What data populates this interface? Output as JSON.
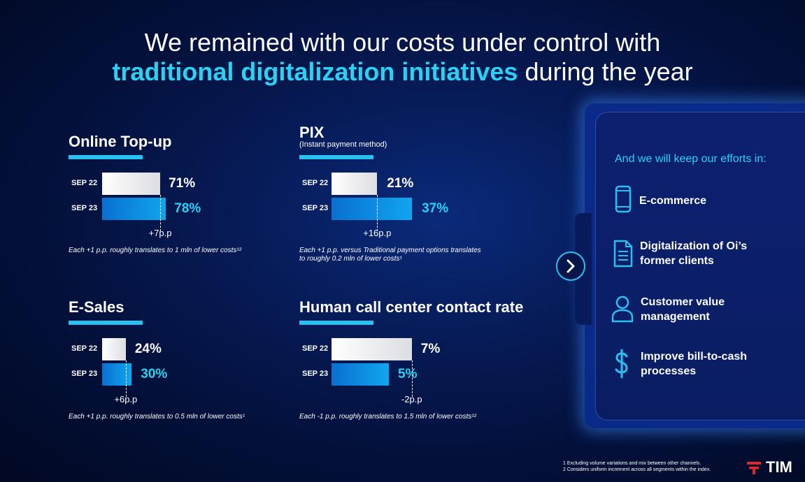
{
  "title": {
    "line1": "We remained with our costs under control with",
    "line2_highlight": "traditional digitalization initiatives",
    "line2_rest": " during the year"
  },
  "chart_data": [
    {
      "type": "bar",
      "title": "Online Top-up",
      "subtitle": "",
      "categories": [
        "SEP 22",
        "SEP 23"
      ],
      "values": [
        71,
        78
      ],
      "value_labels": [
        "71%",
        "78%"
      ],
      "delta": "+7p.p",
      "note": "Each +1 p.p. roughly translates to 1 mln of lower costs¹²"
    },
    {
      "type": "bar",
      "title": "PIX",
      "subtitle": "(Instant payment method)",
      "categories": [
        "SEP 22",
        "SEP 23"
      ],
      "values": [
        21,
        37
      ],
      "value_labels": [
        "21%",
        "37%"
      ],
      "delta": "+16p.p",
      "note": "Each +1 p.p. versus Traditional payment options translates to roughly 0.2 mln of lower costs¹"
    },
    {
      "type": "bar",
      "title": "E-Sales",
      "subtitle": "",
      "categories": [
        "SEP 22",
        "SEP 23"
      ],
      "values": [
        24,
        30
      ],
      "value_labels": [
        "24%",
        "30%"
      ],
      "delta": "+6p.p",
      "note": "Each +1 p.p. roughly translates to 0.5 mln of lower costs¹"
    },
    {
      "type": "bar",
      "title": "Human call center contact rate",
      "subtitle": "",
      "categories": [
        "SEP 22",
        "SEP 23"
      ],
      "values": [
        7,
        5
      ],
      "value_labels": [
        "7%",
        "5%"
      ],
      "delta": "-2p.p",
      "note": "Each -1 p.p. roughly translates to 1.5 mln of lower costs¹²"
    }
  ],
  "card": {
    "heading": "And we will keep our efforts in:",
    "items": [
      {
        "icon": "smartphone-icon",
        "label": "E-commerce"
      },
      {
        "icon": "document-icon",
        "label": "Digitalization of Oi’s former clients"
      },
      {
        "icon": "person-icon",
        "label": "Customer value management"
      },
      {
        "icon": "dollar-icon",
        "label": "Improve bill-to-cash processes"
      }
    ]
  },
  "footnotes": [
    "1 Excluding volume variations and mix between other channels.",
    "2 Considers uniform increment across all segments within the index."
  ],
  "logo": {
    "text": "TIM"
  },
  "colors": {
    "accent": "#27d2f5",
    "bar_blue": "#0a8be0",
    "bar_grey": "#e6e7ea",
    "background": "#061a55"
  }
}
